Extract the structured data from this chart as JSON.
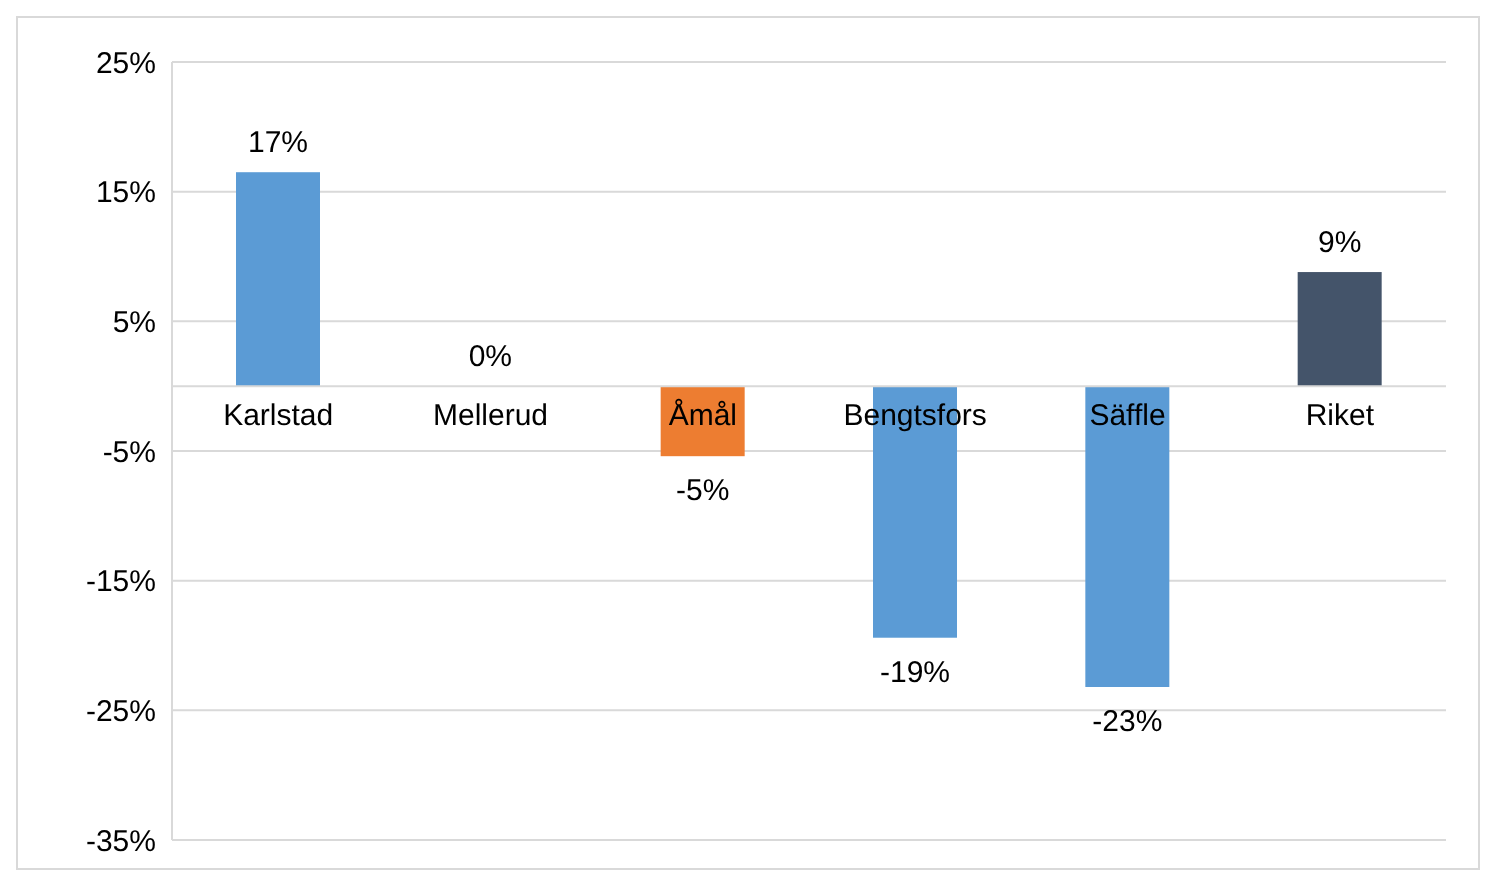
{
  "chart_data": {
    "type": "bar",
    "categories": [
      "Karlstad",
      "Mellerud",
      "Åmål",
      "Bengtsfors",
      "Säffle",
      "Riket"
    ],
    "values": [
      16.5,
      0,
      -5.4,
      -19.4,
      -23.2,
      8.8
    ],
    "value_labels": [
      "17%",
      "0%",
      "-5%",
      "-19%",
      "-23%",
      "9%"
    ],
    "colors": [
      "#5b9bd5",
      "#5b9bd5",
      "#ed7d31",
      "#5b9bd5",
      "#5b9bd5",
      "#44546a"
    ],
    "ylim": [
      -35,
      25
    ],
    "yticks": [
      {
        "value": -35,
        "label": "-35%"
      },
      {
        "value": -25,
        "label": "-25%"
      },
      {
        "value": -15,
        "label": "-15%"
      },
      {
        "value": -5,
        "label": "-5%"
      },
      {
        "value": 5,
        "label": "5%"
      },
      {
        "value": 15,
        "label": "15%"
      },
      {
        "value": 25,
        "label": "25%"
      }
    ],
    "grid": "y",
    "legend": false
  }
}
